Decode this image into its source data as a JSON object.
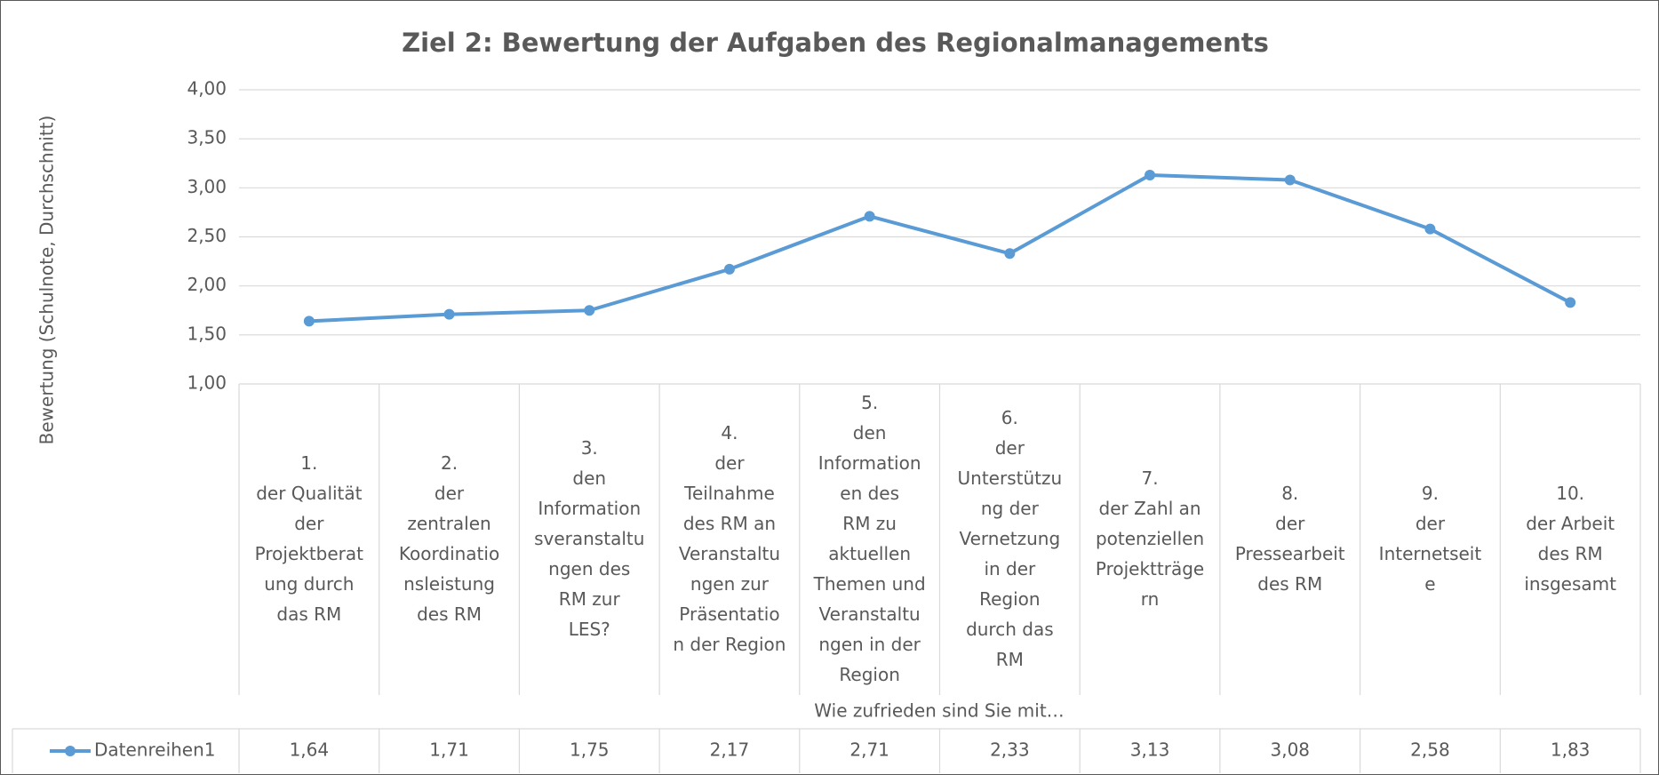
{
  "chart_data": {
    "type": "line",
    "title": "Ziel 2: Bewertung der Aufgaben des Regionalmanagements",
    "y_label": "Bewertung (Schulnote, Durchschnitt)",
    "x_label": "Wie zufrieden sind Sie mit…",
    "categories": [
      "1.\nder Qualität\nder\nProjektberat\nung durch\ndas RM",
      "2.\nder\nzentralen\nKoordinatio\nnsleistung\ndes RM",
      "3.\nden\nInformation\nsveranstaltu\nngen des\nRM zur\nLES?",
      "4.\nder\nTeilnahme\ndes RM an\nVeranstaltu\nngen zur\nPräsentatio\nn der Region",
      "5.\nden\nInformation\nen des\nRM zu\naktuellen\nThemen und\nVeranstaltu\nngen in der\nRegion",
      "6.\nder\nUnterstützu\nng der\nVernetzung\nin der\nRegion\ndurch das\nRM",
      "7.\nder Zahl an\npotenziellen\nProjektträge\nrn",
      "8.\nder\nPressearbeit\ndes RM",
      "9.\nder\nInternetseit\ne",
      "10.\nder Arbeit\ndes RM\ninsgesamt"
    ],
    "series": [
      {
        "name": "Datenreihen1",
        "color": "#5b9bd5",
        "values": [
          1.64,
          1.71,
          1.75,
          2.17,
          2.71,
          2.33,
          3.13,
          3.08,
          2.58,
          1.83
        ],
        "value_labels": [
          "1,64",
          "1,71",
          "1,75",
          "2,17",
          "2,71",
          "2,33",
          "3,13",
          "3,08",
          "2,58",
          "1,83"
        ]
      }
    ],
    "ylim": [
      1,
      4
    ],
    "yticks": [
      {
        "value": 1,
        "label": "1,00"
      },
      {
        "value": 1.5,
        "label": "1,50"
      },
      {
        "value": 2,
        "label": "2,00"
      },
      {
        "value": 2.5,
        "label": "2,50"
      },
      {
        "value": 3,
        "label": "3,00"
      },
      {
        "value": 3.5,
        "label": "3,50"
      },
      {
        "value": 4,
        "label": "4,00"
      }
    ],
    "grid": true
  }
}
